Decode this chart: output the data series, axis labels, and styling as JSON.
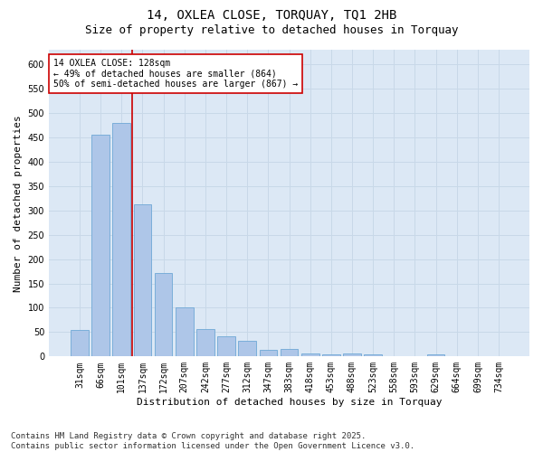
{
  "title": "14, OXLEA CLOSE, TORQUAY, TQ1 2HB",
  "subtitle": "Size of property relative to detached houses in Torquay",
  "xlabel": "Distribution of detached houses by size in Torquay",
  "ylabel": "Number of detached properties",
  "categories": [
    "31sqm",
    "66sqm",
    "101sqm",
    "137sqm",
    "172sqm",
    "207sqm",
    "242sqm",
    "277sqm",
    "312sqm",
    "347sqm",
    "383sqm",
    "418sqm",
    "453sqm",
    "488sqm",
    "523sqm",
    "558sqm",
    "593sqm",
    "629sqm",
    "664sqm",
    "699sqm",
    "734sqm"
  ],
  "values": [
    55,
    455,
    480,
    312,
    172,
    100,
    57,
    41,
    32,
    14,
    15,
    6,
    5,
    6,
    5,
    0,
    0,
    5,
    0,
    0,
    0
  ],
  "bar_color": "#aec6e8",
  "bar_edge_color": "#6fa8d6",
  "vline_x": 2.5,
  "vline_color": "#cc0000",
  "annotation_text": "14 OXLEA CLOSE: 128sqm\n← 49% of detached houses are smaller (864)\n50% of semi-detached houses are larger (867) →",
  "annotation_box_color": "#ffffff",
  "annotation_box_edge": "#cc0000",
  "grid_color": "#c8d8e8",
  "plot_bg_color": "#dce8f5",
  "fig_bg_color": "#ffffff",
  "footer": "Contains HM Land Registry data © Crown copyright and database right 2025.\nContains public sector information licensed under the Open Government Licence v3.0.",
  "ylim": [
    0,
    630
  ],
  "yticks": [
    0,
    50,
    100,
    150,
    200,
    250,
    300,
    350,
    400,
    450,
    500,
    550,
    600
  ],
  "title_fontsize": 10,
  "subtitle_fontsize": 9,
  "axis_label_fontsize": 8,
  "tick_fontsize": 7,
  "annotation_fontsize": 7,
  "footer_fontsize": 6.5
}
